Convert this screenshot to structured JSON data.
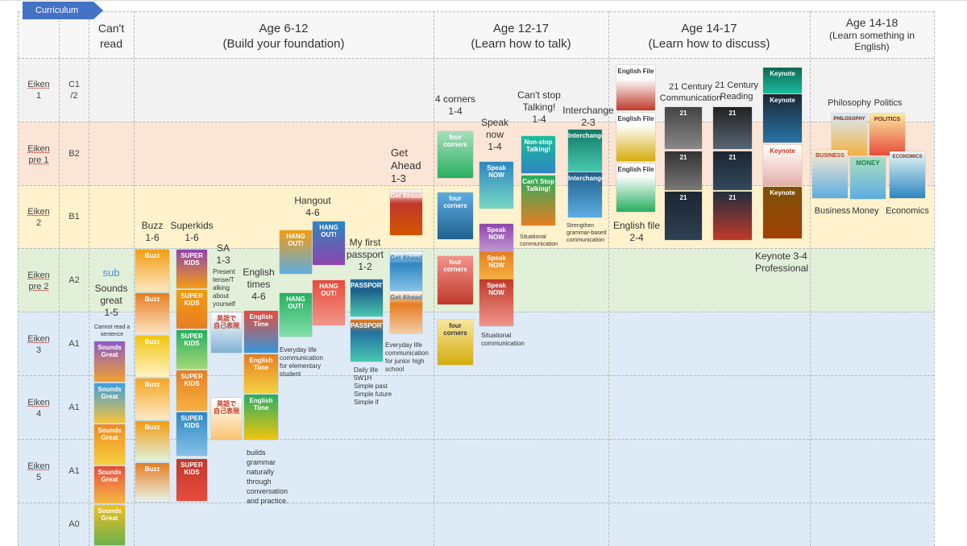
{
  "tab": {
    "label": "Curriculum"
  },
  "columns": [
    {
      "line1": "Can't",
      "line2": "read"
    },
    {
      "line1": "Age  6-12",
      "line2": "(Build your foundation)"
    },
    {
      "line1": "Age 12-17",
      "line2": "(Learn how to talk)"
    },
    {
      "line1": "Age 14-17",
      "line2": "(Learn how to discuss)"
    },
    {
      "line1": "Age 14-18",
      "line2": "(Learn something in",
      "line3": "English)"
    }
  ],
  "rows": [
    {
      "eiken1": "Eiken",
      "eiken2": "1",
      "level": "C1\n/2",
      "color": "#f2f2f2"
    },
    {
      "eiken1": "Eiken",
      "eiken2": "pre 1",
      "level": "B2",
      "color": "#fbe5d6"
    },
    {
      "eiken1": "Eiken",
      "eiken2": "2",
      "level": "B1",
      "color": "#fff2cc"
    },
    {
      "eiken1": "Eiken",
      "eiken2": "pre 2",
      "level": "A2",
      "color": "#e2f0d9"
    },
    {
      "eiken1": "Eiken",
      "eiken2": "3",
      "level": "A1",
      "color": "#deebf7"
    },
    {
      "eiken1": "Eiken",
      "eiken2": "4",
      "level": "A1",
      "color": "#deebf7"
    },
    {
      "eiken1": "Eiken",
      "eiken2": "5",
      "level": "A1",
      "color": "#deebf7"
    },
    {
      "eiken1": "",
      "eiken2": "",
      "level": "A0",
      "color": "#deebf7"
    }
  ],
  "labels": {
    "sub": "sub",
    "sounds": "Sounds\ngreat\n1-5",
    "cannot_read": "Cannot read a\nsentence",
    "buzz": "Buzz\n1-6",
    "superkids": "Superkids\n1-6",
    "sa": "SA\n1-3",
    "sa_note": "Present\ntense/T\nalking\nabout\nyourself",
    "english_times": "English\ntimes\n4-6",
    "english_times_note": "builds\ngrammar\nnaturally\nthrough\nconversation\nand practice.",
    "hangout": "Hangout\n4-6",
    "hangout_note": "Everyday life\ncommunication\nfor elementary\nstudent",
    "passport": "My first\npassport\n1-2",
    "passport_note": "Daily life\n5W1H\nSimple past\nSimple future\nSimple if",
    "get_ahead": "Get\nAhead\n1-3",
    "get_ahead_note": "Everyday life\ncommunication\nfor junior high\nschool",
    "four_corners": "4 corners\n1-4",
    "speak_now": "Speak\nnow\n1-4",
    "speak_now_note": "Situational\ncommunication",
    "cant_stop": "Can't stop\nTalking!\n1-4",
    "cant_stop_note": "Situational\ncommunication",
    "interchange": "Interchange\n2-3",
    "interchange_note": "Strengthen\ngrammar-based\ncommunication",
    "english_file": "English file\n2-4",
    "c21_comm": "21 Century\nCommunication",
    "c21_read": "21 Century\nReading",
    "keynote": "Keynote 3-4\nProfessional",
    "philosophy": "Philosophy",
    "politics": "Politics",
    "business": "Business",
    "money": "Money",
    "economics": "Economics"
  },
  "books": {
    "sounds": "Sounds\nGreat",
    "buzz": "Buzz",
    "superkids": "SUPER\nKIDS",
    "sa": "英語で\n自己表現",
    "english_time": "English\nTime",
    "hangout": "HANG\nOUT!",
    "passport": "PASSPORT",
    "get_ahead": "Get Ahead",
    "four_corners": "four\ncorners",
    "speak_now": "Speak\nNOW",
    "cant_stop_1": "Non-stop\nTalking!",
    "cant_stop_2": "Can't Stop\nTalking!",
    "interchange": "Interchange",
    "english_file": "English File",
    "c21": "21",
    "keynote": "Keynote",
    "philosophy": "PHILOSOPHY",
    "politics": "POLITICS",
    "business": "BUSINESS",
    "money": "MONEY",
    "economics": "ECONOMICS"
  },
  "colors": {
    "tab": "#4472c4",
    "grid": "#b9b9b9"
  }
}
